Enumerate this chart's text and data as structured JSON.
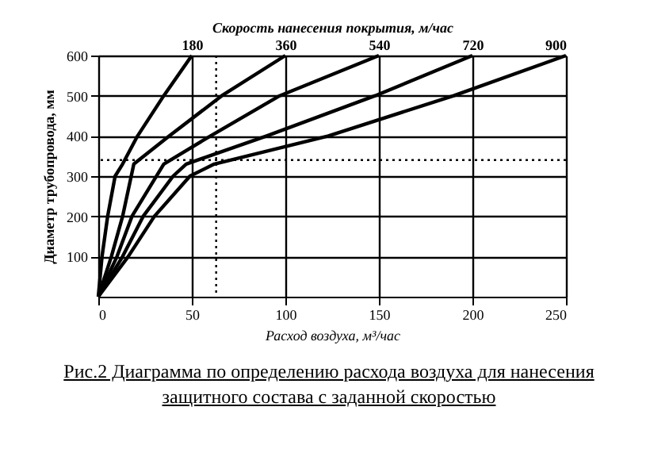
{
  "chart_data": {
    "type": "line",
    "xlabel": "Расход воздуха, м³/час",
    "ylabel": "Диаметр трубопровода, мм",
    "x2label": "Скорость нанесения покрытия, м/час",
    "annotations": [
      "Рис.2 Диаграмма по определению расхода воздуха для нанесения защитного состава с заданной скоростью"
    ],
    "series": [
      {
        "color": "#000000",
        "x": [
          0,
          2,
          5,
          9,
          13,
          21,
          35,
          50
        ],
        "values": [
          0,
          100,
          200,
          300,
          330,
          400,
          500,
          600
        ]
      },
      {
        "color": "#000000",
        "x": [
          0,
          7,
          13,
          19,
          38,
          66,
          100
        ],
        "values": [
          0,
          100,
          200,
          330,
          400,
          500,
          600
        ]
      },
      {
        "color": "#000000",
        "x": [
          0,
          10,
          18,
          35,
          60,
          97,
          150
        ],
        "values": [
          0,
          100,
          200,
          330,
          400,
          500,
          600
        ]
      },
      {
        "color": "#000000",
        "x": [
          0,
          13,
          24,
          40,
          47,
          90,
          148,
          200
        ],
        "values": [
          0,
          100,
          200,
          300,
          330,
          400,
          500,
          600
        ]
      },
      {
        "color": "#000000",
        "x": [
          0,
          16,
          30,
          49,
          62,
          123,
          190,
          250
        ],
        "values": [
          0,
          100,
          200,
          300,
          330,
          400,
          500,
          600
        ]
      }
    ],
    "xlim": [
      0,
      250
    ],
    "xticks": [
      0,
      50,
      100,
      150,
      200,
      250
    ],
    "x2lim": [
      0,
      900
    ],
    "x2ticks": [
      180,
      360,
      540,
      720,
      900
    ],
    "ylim": [
      0,
      600
    ],
    "yticks": [
      100,
      200,
      300,
      400,
      500,
      600
    ],
    "ref_lines": [
      {
        "axis": "x",
        "value": 63,
        "line_style": "dotted"
      },
      {
        "axis": "y",
        "value": 340,
        "line_style": "dotted"
      }
    ],
    "grid": true,
    "line_style": "solid",
    "marker": "none"
  }
}
